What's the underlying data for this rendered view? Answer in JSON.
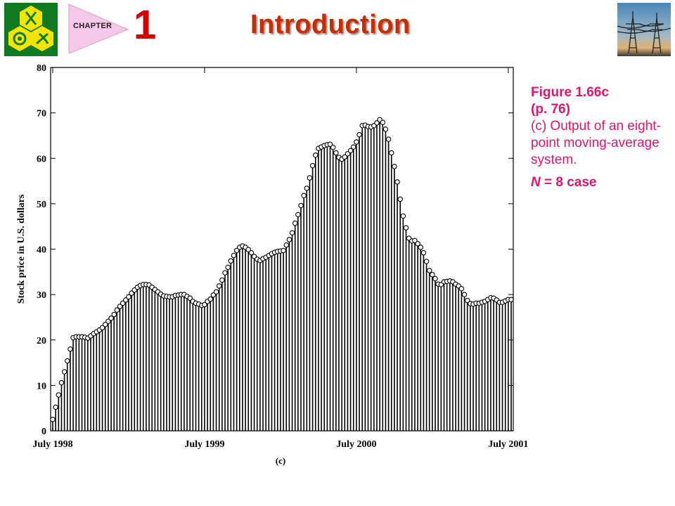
{
  "header": {
    "chapter_label": "CHAPTER",
    "chapter_number": "1",
    "title": "Introduction",
    "logo_icon": "university-logo-icon",
    "photo_icon": "power-lines-photo"
  },
  "caption": {
    "figure_label": "Figure 1.66c",
    "page_ref": "(p. 76)",
    "description": "(c) Output of an eight-point moving-average system.",
    "note_var": "N",
    "note_rest": " = 8 case",
    "color": "#e8106e"
  },
  "chart_data": {
    "type": "bar",
    "style": "stem-with-circle-markers",
    "ylabel": "Stock price in U.S. dollars",
    "xlabel": "(c)",
    "ylim": [
      0,
      80
    ],
    "yticks": [
      0,
      10,
      20,
      30,
      40,
      50,
      60,
      70,
      80
    ],
    "xtick_labels": [
      "July 1998",
      "July 1999",
      "July 2000",
      "July 2001"
    ],
    "xtick_positions": [
      0,
      52,
      104,
      156
    ],
    "n_points": 160,
    "grid": false,
    "values": [
      2.5,
      5.2,
      7.9,
      10.6,
      13,
      15.4,
      18,
      20.5,
      20.7,
      20.7,
      20.7,
      20.6,
      20.4,
      20.9,
      21.4,
      21.8,
      22.2,
      22.7,
      23.4,
      24.1,
      24.8,
      25.6,
      26.6,
      27.4,
      28.1,
      28.8,
      29.5,
      30.3,
      31,
      31.6,
      32,
      32.2,
      32.2,
      32.1,
      31.6,
      31.1,
      30.6,
      30.1,
      29.7,
      29.6,
      29.5,
      29.5,
      29.8,
      29.9,
      30,
      30,
      29.6,
      29.2,
      28.5,
      28.1,
      27.9,
      27.6,
      27.8,
      28.5,
      29,
      29.9,
      30.6,
      31.9,
      33.2,
      34.8,
      36,
      37.4,
      38.6,
      39.7,
      40.4,
      40.7,
      40.4,
      39.9,
      39.2,
      38.4,
      37.8,
      37.5,
      37.9,
      38.2,
      38.6,
      39,
      39.3,
      39.5,
      39.6,
      39.7,
      40.9,
      42.1,
      43.6,
      45.7,
      47.6,
      49.6,
      51.8,
      53.4,
      55.7,
      58.4,
      60.7,
      62.2,
      62.5,
      62.8,
      63,
      63.1,
      62.4,
      61.2,
      60.2,
      59.8,
      60.3,
      61,
      61.7,
      62.5,
      63.6,
      65.2,
      67.2,
      67.3,
      67,
      66.9,
      67.2,
      67.8,
      68.5,
      67.9,
      66.4,
      64.2,
      61.2,
      58.2,
      54.8,
      51,
      47.3,
      44.7,
      42.4,
      41.8,
      41.9,
      41.2,
      40.4,
      39.2,
      37.3,
      35.3,
      34.4,
      33.5,
      32.3,
      32.2,
      32.8,
      32.9,
      33,
      32.8,
      32.3,
      31.9,
      31.3,
      30,
      28.7,
      28,
      27.9,
      28.1,
      28.1,
      28.3,
      28.5,
      28.9,
      29.3,
      29.2,
      28.8,
      28.3,
      28.3,
      28.6,
      28.9,
      28.9
    ]
  }
}
